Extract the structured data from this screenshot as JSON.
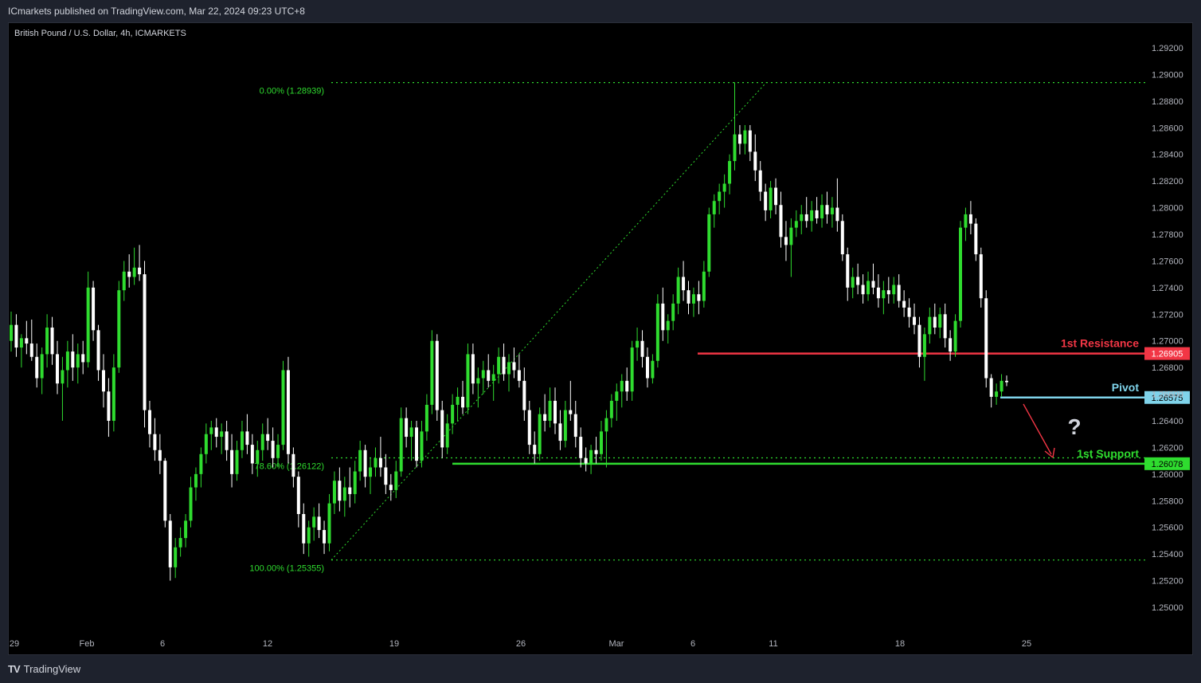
{
  "header": {
    "published": "ICmarkets published on TradingView.com, Mar 22, 2024 09:23 UTC+8"
  },
  "symbol": "British Pound / U.S. Dollar, 4h, ICMARKETS",
  "footer": {
    "logo": "TV",
    "brand": "TradingView"
  },
  "chart_data": {
    "type": "candlestick",
    "y_axis": {
      "min": 1.2488,
      "max": 1.2935,
      "ticks": [
        "1.29200",
        "1.29000",
        "1.28800",
        "1.28600",
        "1.28400",
        "1.28200",
        "1.28000",
        "1.27800",
        "1.27600",
        "1.27400",
        "1.27200",
        "1.27000",
        "1.26800",
        "1.26600",
        "1.26400",
        "1.26200",
        "1.26000",
        "1.25800",
        "1.25600",
        "1.25400",
        "1.25200",
        "1.25000"
      ]
    },
    "x_axis": {
      "labels": [
        "29",
        "Feb",
        "6",
        "12",
        "19",
        "26",
        "Mar",
        "6",
        "11",
        "18",
        "25"
      ]
    },
    "fibonacci": [
      {
        "label": "0.00% (1.28939)",
        "value": 1.28939
      },
      {
        "label": "78.60% (1.26122)",
        "value": 1.26122
      },
      {
        "label": "100.00% (1.25355)",
        "value": 1.25355
      }
    ],
    "levels": [
      {
        "name": "1st Resistance",
        "value": 1.26905,
        "badge": "1.26905",
        "color": "#f23645"
      },
      {
        "name": "Pivot",
        "value": 1.26575,
        "badge": "1.26575",
        "color": "#7fd3ea"
      },
      {
        "name": "1st Support",
        "value": 1.26078,
        "badge": "1.26078",
        "color": "#2fdc2f"
      }
    ],
    "annotation": "?",
    "colors": {
      "up": "#2fdc2f",
      "down": "#ffffff",
      "background": "#000000"
    },
    "candles": [
      [
        1.27,
        1.2722,
        1.2692,
        1.2712
      ],
      [
        1.2712,
        1.272,
        1.2688,
        1.2695
      ],
      [
        1.2695,
        1.2705,
        1.268,
        1.2702
      ],
      [
        1.2702,
        1.2715,
        1.269,
        1.2698
      ],
      [
        1.2698,
        1.2716,
        1.2685,
        1.2688
      ],
      [
        1.2688,
        1.2698,
        1.2665,
        1.2672
      ],
      [
        1.2672,
        1.2695,
        1.266,
        1.269
      ],
      [
        1.269,
        1.272,
        1.268,
        1.271
      ],
      [
        1.271,
        1.2718,
        1.2682,
        1.269
      ],
      [
        1.269,
        1.27,
        1.266,
        1.2668
      ],
      [
        1.2668,
        1.2688,
        1.264,
        1.2678
      ],
      [
        1.2678,
        1.27,
        1.2665,
        1.2692
      ],
      [
        1.2692,
        1.2705,
        1.267,
        1.268
      ],
      [
        1.268,
        1.2698,
        1.2668,
        1.269
      ],
      [
        1.269,
        1.27,
        1.2675,
        1.2684
      ],
      [
        1.2684,
        1.2752,
        1.268,
        1.274
      ],
      [
        1.274,
        1.2745,
        1.27,
        1.2708
      ],
      [
        1.2708,
        1.2712,
        1.267,
        1.2678
      ],
      [
        1.2678,
        1.269,
        1.265,
        1.2662
      ],
      [
        1.2662,
        1.2672,
        1.2628,
        1.264
      ],
      [
        1.264,
        1.269,
        1.2632,
        1.268
      ],
      [
        1.268,
        1.2745,
        1.2676,
        1.2738
      ],
      [
        1.2738,
        1.276,
        1.273,
        1.2752
      ],
      [
        1.2752,
        1.2765,
        1.274,
        1.2748
      ],
      [
        1.2748,
        1.277,
        1.2742,
        1.2755
      ],
      [
        1.2755,
        1.2772,
        1.2745,
        1.275
      ],
      [
        1.275,
        1.276,
        1.2635,
        1.2648
      ],
      [
        1.2648,
        1.2655,
        1.262,
        1.263
      ],
      [
        1.263,
        1.2642,
        1.261,
        1.2618
      ],
      [
        1.2618,
        1.263,
        1.26,
        1.261
      ],
      [
        1.261,
        1.2612,
        1.256,
        1.2565
      ],
      [
        1.2565,
        1.257,
        1.252,
        1.253
      ],
      [
        1.253,
        1.2552,
        1.2522,
        1.2545
      ],
      [
        1.2545,
        1.256,
        1.2538,
        1.2552
      ],
      [
        1.2552,
        1.257,
        1.2545,
        1.2565
      ],
      [
        1.2565,
        1.2598,
        1.256,
        1.259
      ],
      [
        1.259,
        1.2605,
        1.258,
        1.26
      ],
      [
        1.26,
        1.262,
        1.259,
        1.2615
      ],
      [
        1.2615,
        1.2638,
        1.2608,
        1.263
      ],
      [
        1.263,
        1.264,
        1.2618,
        1.2635
      ],
      [
        1.2635,
        1.2642,
        1.262,
        1.2628
      ],
      [
        1.2628,
        1.2638,
        1.2615,
        1.2632
      ],
      [
        1.2632,
        1.264,
        1.261,
        1.2618
      ],
      [
        1.2618,
        1.263,
        1.259,
        1.26
      ],
      [
        1.26,
        1.2625,
        1.2595,
        1.2618
      ],
      [
        1.2618,
        1.264,
        1.2612,
        1.2632
      ],
      [
        1.2632,
        1.2645,
        1.2615,
        1.2622
      ],
      [
        1.2622,
        1.263,
        1.26,
        1.2608
      ],
      [
        1.2608,
        1.2625,
        1.2598,
        1.2618
      ],
      [
        1.2618,
        1.2638,
        1.261,
        1.263
      ],
      [
        1.263,
        1.2642,
        1.2618,
        1.2625
      ],
      [
        1.2625,
        1.2635,
        1.2605,
        1.2612
      ],
      [
        1.2612,
        1.263,
        1.2605,
        1.2622
      ],
      [
        1.2622,
        1.2685,
        1.2618,
        1.2678
      ],
      [
        1.2678,
        1.2688,
        1.2608,
        1.2615
      ],
      [
        1.2615,
        1.262,
        1.259,
        1.2598
      ],
      [
        1.2598,
        1.2602,
        1.256,
        1.257
      ],
      [
        1.257,
        1.2578,
        1.254,
        1.2548
      ],
      [
        1.2548,
        1.2565,
        1.2538,
        1.256
      ],
      [
        1.256,
        1.2575,
        1.255,
        1.2568
      ],
      [
        1.2568,
        1.2578,
        1.2552,
        1.2558
      ],
      [
        1.2558,
        1.2565,
        1.254,
        1.2548
      ],
      [
        1.2548,
        1.2585,
        1.2542,
        1.2578
      ],
      [
        1.2578,
        1.2602,
        1.257,
        1.2595
      ],
      [
        1.2595,
        1.2605,
        1.2572,
        1.258
      ],
      [
        1.258,
        1.2598,
        1.2568,
        1.259
      ],
      [
        1.259,
        1.2605,
        1.2575,
        1.2585
      ],
      [
        1.2585,
        1.261,
        1.2578,
        1.2602
      ],
      [
        1.2602,
        1.2625,
        1.2595,
        1.2618
      ],
      [
        1.2618,
        1.2622,
        1.259,
        1.2598
      ],
      [
        1.2598,
        1.2612,
        1.2585,
        1.2605
      ],
      [
        1.2605,
        1.262,
        1.2598,
        1.2612
      ],
      [
        1.2612,
        1.2628,
        1.2598,
        1.2605
      ],
      [
        1.2605,
        1.2615,
        1.2585,
        1.2592
      ],
      [
        1.2592,
        1.26,
        1.258,
        1.2588
      ],
      [
        1.2588,
        1.261,
        1.2582,
        1.2602
      ],
      [
        1.2602,
        1.265,
        1.2598,
        1.2642
      ],
      [
        1.2642,
        1.265,
        1.262,
        1.2628
      ],
      [
        1.2628,
        1.264,
        1.261,
        1.2635
      ],
      [
        1.2635,
        1.264,
        1.2605,
        1.261
      ],
      [
        1.261,
        1.264,
        1.2605,
        1.2632
      ],
      [
        1.2632,
        1.266,
        1.2625,
        1.2652
      ],
      [
        1.2652,
        1.2708,
        1.2645,
        1.27
      ],
      [
        1.27,
        1.2705,
        1.264,
        1.2648
      ],
      [
        1.2648,
        1.2655,
        1.2612,
        1.262
      ],
      [
        1.262,
        1.2645,
        1.2615,
        1.2638
      ],
      [
        1.2638,
        1.266,
        1.263,
        1.2652
      ],
      [
        1.2652,
        1.2665,
        1.264,
        1.2658
      ],
      [
        1.2658,
        1.267,
        1.2645,
        1.265
      ],
      [
        1.265,
        1.2698,
        1.2645,
        1.269
      ],
      [
        1.269,
        1.2698,
        1.266,
        1.2668
      ],
      [
        1.2668,
        1.268,
        1.265,
        1.2672
      ],
      [
        1.2672,
        1.2685,
        1.266,
        1.2678
      ],
      [
        1.2678,
        1.269,
        1.2665,
        1.267
      ],
      [
        1.267,
        1.2682,
        1.2655,
        1.2675
      ],
      [
        1.2675,
        1.2695,
        1.2668,
        1.2688
      ],
      [
        1.2688,
        1.2698,
        1.267,
        1.2675
      ],
      [
        1.2675,
        1.269,
        1.2662,
        1.2684
      ],
      [
        1.2684,
        1.2695,
        1.2672,
        1.2678
      ],
      [
        1.2678,
        1.269,
        1.2665,
        1.267
      ],
      [
        1.267,
        1.268,
        1.264,
        1.2648
      ],
      [
        1.2648,
        1.2655,
        1.2615,
        1.2622
      ],
      [
        1.2622,
        1.2632,
        1.2608,
        1.2615
      ],
      [
        1.2615,
        1.265,
        1.261,
        1.2645
      ],
      [
        1.2645,
        1.266,
        1.2632,
        1.264
      ],
      [
        1.264,
        1.2665,
        1.2635,
        1.2655
      ],
      [
        1.2655,
        1.2665,
        1.263,
        1.2638
      ],
      [
        1.2638,
        1.2648,
        1.2618,
        1.2625
      ],
      [
        1.2625,
        1.2655,
        1.262,
        1.2648
      ],
      [
        1.2648,
        1.267,
        1.264,
        1.2645
      ],
      [
        1.2645,
        1.2655,
        1.262,
        1.2628
      ],
      [
        1.2628,
        1.2635,
        1.2605,
        1.2612
      ],
      [
        1.2612,
        1.262,
        1.2602,
        1.2608
      ],
      [
        1.2608,
        1.2622,
        1.26,
        1.2618
      ],
      [
        1.2618,
        1.2628,
        1.2608,
        1.2615
      ],
      [
        1.2615,
        1.264,
        1.261,
        1.2632
      ],
      [
        1.2632,
        1.2648,
        1.2605,
        1.2642
      ],
      [
        1.2642,
        1.266,
        1.2635,
        1.2655
      ],
      [
        1.2655,
        1.2668,
        1.264,
        1.2662
      ],
      [
        1.2662,
        1.2675,
        1.265,
        1.267
      ],
      [
        1.267,
        1.268,
        1.2655,
        1.2662
      ],
      [
        1.2662,
        1.27,
        1.2655,
        1.2695
      ],
      [
        1.2695,
        1.271,
        1.2685,
        1.27
      ],
      [
        1.27,
        1.2708,
        1.268,
        1.2688
      ],
      [
        1.2688,
        1.2695,
        1.2665,
        1.2672
      ],
      [
        1.2672,
        1.269,
        1.2668,
        1.2685
      ],
      [
        1.2685,
        1.2735,
        1.268,
        1.2728
      ],
      [
        1.2728,
        1.274,
        1.27,
        1.2708
      ],
      [
        1.2708,
        1.272,
        1.2698,
        1.2715
      ],
      [
        1.2715,
        1.2735,
        1.2708,
        1.2728
      ],
      [
        1.2728,
        1.2755,
        1.272,
        1.2748
      ],
      [
        1.2748,
        1.276,
        1.273,
        1.2738
      ],
      [
        1.2738,
        1.2745,
        1.272,
        1.2728
      ],
      [
        1.2728,
        1.274,
        1.2718,
        1.2735
      ],
      [
        1.2735,
        1.2745,
        1.272,
        1.273
      ],
      [
        1.273,
        1.276,
        1.2725,
        1.2752
      ],
      [
        1.2752,
        1.28,
        1.2748,
        1.2795
      ],
      [
        1.2795,
        1.281,
        1.2785,
        1.2805
      ],
      [
        1.2805,
        1.2818,
        1.2795,
        1.2812
      ],
      [
        1.2812,
        1.2825,
        1.28,
        1.2818
      ],
      [
        1.2818,
        1.284,
        1.281,
        1.2835
      ],
      [
        1.2835,
        1.2894,
        1.2828,
        1.2855
      ],
      [
        1.2855,
        1.2862,
        1.284,
        1.2848
      ],
      [
        1.2848,
        1.2862,
        1.284,
        1.2858
      ],
      [
        1.2858,
        1.2862,
        1.2835,
        1.2842
      ],
      [
        1.2842,
        1.2855,
        1.282,
        1.2828
      ],
      [
        1.2828,
        1.2835,
        1.2805,
        1.2812
      ],
      [
        1.2812,
        1.2818,
        1.279,
        1.2798
      ],
      [
        1.2798,
        1.282,
        1.2792,
        1.2815
      ],
      [
        1.2815,
        1.2822,
        1.2795,
        1.2802
      ],
      [
        1.2802,
        1.2812,
        1.277,
        1.2778
      ],
      [
        1.2778,
        1.279,
        1.276,
        1.2772
      ],
      [
        1.2772,
        1.2792,
        1.2748,
        1.2785
      ],
      [
        1.2785,
        1.2798,
        1.2778,
        1.279
      ],
      [
        1.279,
        1.2802,
        1.278,
        1.2795
      ],
      [
        1.2795,
        1.2808,
        1.2785,
        1.279
      ],
      [
        1.279,
        1.2805,
        1.2782,
        1.2798
      ],
      [
        1.2798,
        1.2808,
        1.2788,
        1.2792
      ],
      [
        1.2792,
        1.281,
        1.2785,
        1.2802
      ],
      [
        1.2802,
        1.2812,
        1.2788,
        1.2795
      ],
      [
        1.2795,
        1.2808,
        1.2785,
        1.28
      ],
      [
        1.28,
        1.2822,
        1.2782,
        1.279
      ],
      [
        1.279,
        1.2795,
        1.276,
        1.2765
      ],
      [
        1.2765,
        1.277,
        1.273,
        1.274
      ],
      [
        1.274,
        1.2755,
        1.2732,
        1.2748
      ],
      [
        1.2748,
        1.2758,
        1.2735,
        1.2742
      ],
      [
        1.2742,
        1.275,
        1.2728,
        1.2735
      ],
      [
        1.2735,
        1.2752,
        1.273,
        1.2745
      ],
      [
        1.2745,
        1.2758,
        1.2735,
        1.274
      ],
      [
        1.274,
        1.275,
        1.2725,
        1.2732
      ],
      [
        1.2732,
        1.2745,
        1.272,
        1.2738
      ],
      [
        1.2738,
        1.2748,
        1.2728,
        1.2735
      ],
      [
        1.2735,
        1.2748,
        1.2728,
        1.2742
      ],
      [
        1.2742,
        1.275,
        1.2725,
        1.273
      ],
      [
        1.273,
        1.2738,
        1.2718,
        1.2725
      ],
      [
        1.2725,
        1.2732,
        1.271,
        1.2718
      ],
      [
        1.2718,
        1.2728,
        1.2705,
        1.2712
      ],
      [
        1.2712,
        1.2718,
        1.268,
        1.2688
      ],
      [
        1.2688,
        1.271,
        1.267,
        1.2705
      ],
      [
        1.2705,
        1.2725,
        1.2698,
        1.2718
      ],
      [
        1.2718,
        1.2728,
        1.2705,
        1.271
      ],
      [
        1.271,
        1.2725,
        1.2702,
        1.272
      ],
      [
        1.272,
        1.2728,
        1.2695,
        1.2702
      ],
      [
        1.2702,
        1.2708,
        1.2685,
        1.2692
      ],
      [
        1.2692,
        1.272,
        1.2688,
        1.2715
      ],
      [
        1.2715,
        1.279,
        1.271,
        1.2785
      ],
      [
        1.2785,
        1.28,
        1.2775,
        1.2795
      ],
      [
        1.2795,
        1.2805,
        1.278,
        1.2788
      ],
      [
        1.2788,
        1.2792,
        1.276,
        1.2765
      ],
      [
        1.2765,
        1.277,
        1.2725,
        1.2732
      ],
      [
        1.2732,
        1.2738,
        1.2665,
        1.2672
      ],
      [
        1.2672,
        1.2675,
        1.265,
        1.2658
      ],
      [
        1.2658,
        1.2668,
        1.2652,
        1.2662
      ],
      [
        1.2662,
        1.2675,
        1.2658,
        1.267
      ],
      [
        1.267,
        1.2674,
        1.2666,
        1.2669
      ]
    ]
  }
}
